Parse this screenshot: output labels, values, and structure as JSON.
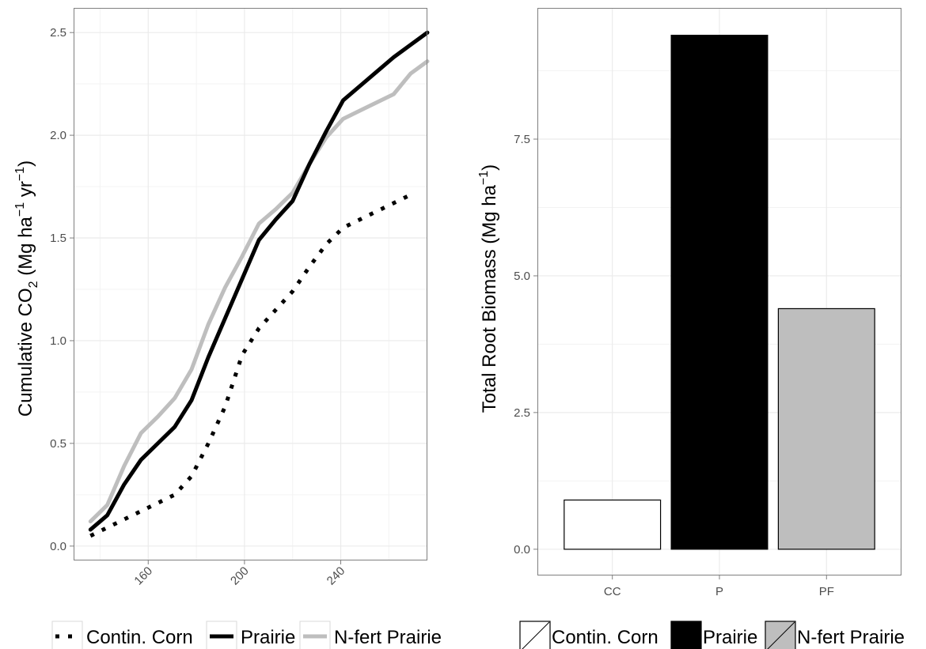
{
  "colors": {
    "contin_corn": "#000000",
    "prairie": "#000000",
    "nfert_prairie": "#bebebe",
    "bar_cc_fill": "#ffffff",
    "bar_p_fill": "#000000",
    "bar_pf_fill": "#bebebe",
    "grid": "#ebebeb",
    "panel_border": "#7f7f7f"
  },
  "chart_data": [
    {
      "type": "line",
      "title": "",
      "xlabel": "",
      "ylabel": {
        "prefix": "Cumulative CO",
        "sub": "2",
        "unit_open": " (Mg ha",
        "sup1": "−1",
        "mid": " yr",
        "sup2": "−1",
        "close": ")"
      },
      "xlim": [
        129,
        276
      ],
      "ylim": [
        -0.07,
        2.62
      ],
      "x_ticks": [
        160,
        200,
        240
      ],
      "x_tick_labels": [
        "160",
        "200",
        "240"
      ],
      "y_ticks": [
        0.0,
        0.5,
        1.0,
        1.5,
        2.0,
        2.5
      ],
      "y_tick_labels": [
        "0.0",
        "0.5",
        "1.0",
        "1.5",
        "2.0",
        "2.5"
      ],
      "grid": true,
      "legend": "bottom",
      "series": [
        {
          "name": "Contin. Corn",
          "style": "dotted",
          "x": [
            136,
            143,
            150,
            157,
            164,
            171,
            178,
            185,
            192,
            199,
            206,
            213,
            220,
            227,
            234,
            241,
            248,
            255,
            262,
            269
          ],
          "y": [
            0.05,
            0.09,
            0.13,
            0.17,
            0.21,
            0.25,
            0.34,
            0.5,
            0.68,
            0.93,
            1.06,
            1.15,
            1.24,
            1.36,
            1.47,
            1.55,
            1.59,
            1.63,
            1.67,
            1.71
          ]
        },
        {
          "name": "Prairie",
          "style": "solid",
          "x": [
            136,
            143,
            150,
            157,
            164,
            171,
            178,
            185,
            192,
            199,
            206,
            213,
            220,
            227,
            234,
            241,
            248,
            255,
            262,
            269,
            276
          ],
          "y": [
            0.08,
            0.15,
            0.3,
            0.42,
            0.5,
            0.58,
            0.71,
            0.92,
            1.11,
            1.3,
            1.49,
            1.59,
            1.68,
            1.86,
            2.02,
            2.17,
            2.24,
            2.31,
            2.38,
            2.44,
            2.5
          ]
        },
        {
          "name": "N-fert Prairie",
          "style": "solid",
          "x": [
            136,
            143,
            150,
            157,
            164,
            171,
            178,
            185,
            192,
            199,
            206,
            213,
            220,
            227,
            234,
            241,
            248,
            255,
            262,
            269,
            276
          ],
          "y": [
            0.12,
            0.2,
            0.39,
            0.55,
            0.63,
            0.72,
            0.86,
            1.08,
            1.26,
            1.41,
            1.57,
            1.64,
            1.72,
            1.86,
            1.99,
            2.08,
            2.12,
            2.16,
            2.2,
            2.3,
            2.36
          ]
        }
      ]
    },
    {
      "type": "bar",
      "title": "",
      "xlabel": "",
      "ylabel": {
        "prefix": "Total Root Biomass (Mg ha",
        "sup": "−1",
        "close": ")"
      },
      "categories": [
        "CC",
        "P",
        "PF"
      ],
      "values": [
        0.9,
        9.4,
        4.4
      ],
      "ylim": [
        -0.48,
        9.9
      ],
      "y_ticks": [
        0.0,
        2.5,
        5.0,
        7.5
      ],
      "y_tick_labels": [
        "0.0",
        "2.5",
        "5.0",
        "7.5"
      ],
      "grid": true,
      "legend": "bottom",
      "legend_entries": [
        "Contin. Corn",
        "Prairie",
        "N-fert Prairie"
      ]
    }
  ]
}
